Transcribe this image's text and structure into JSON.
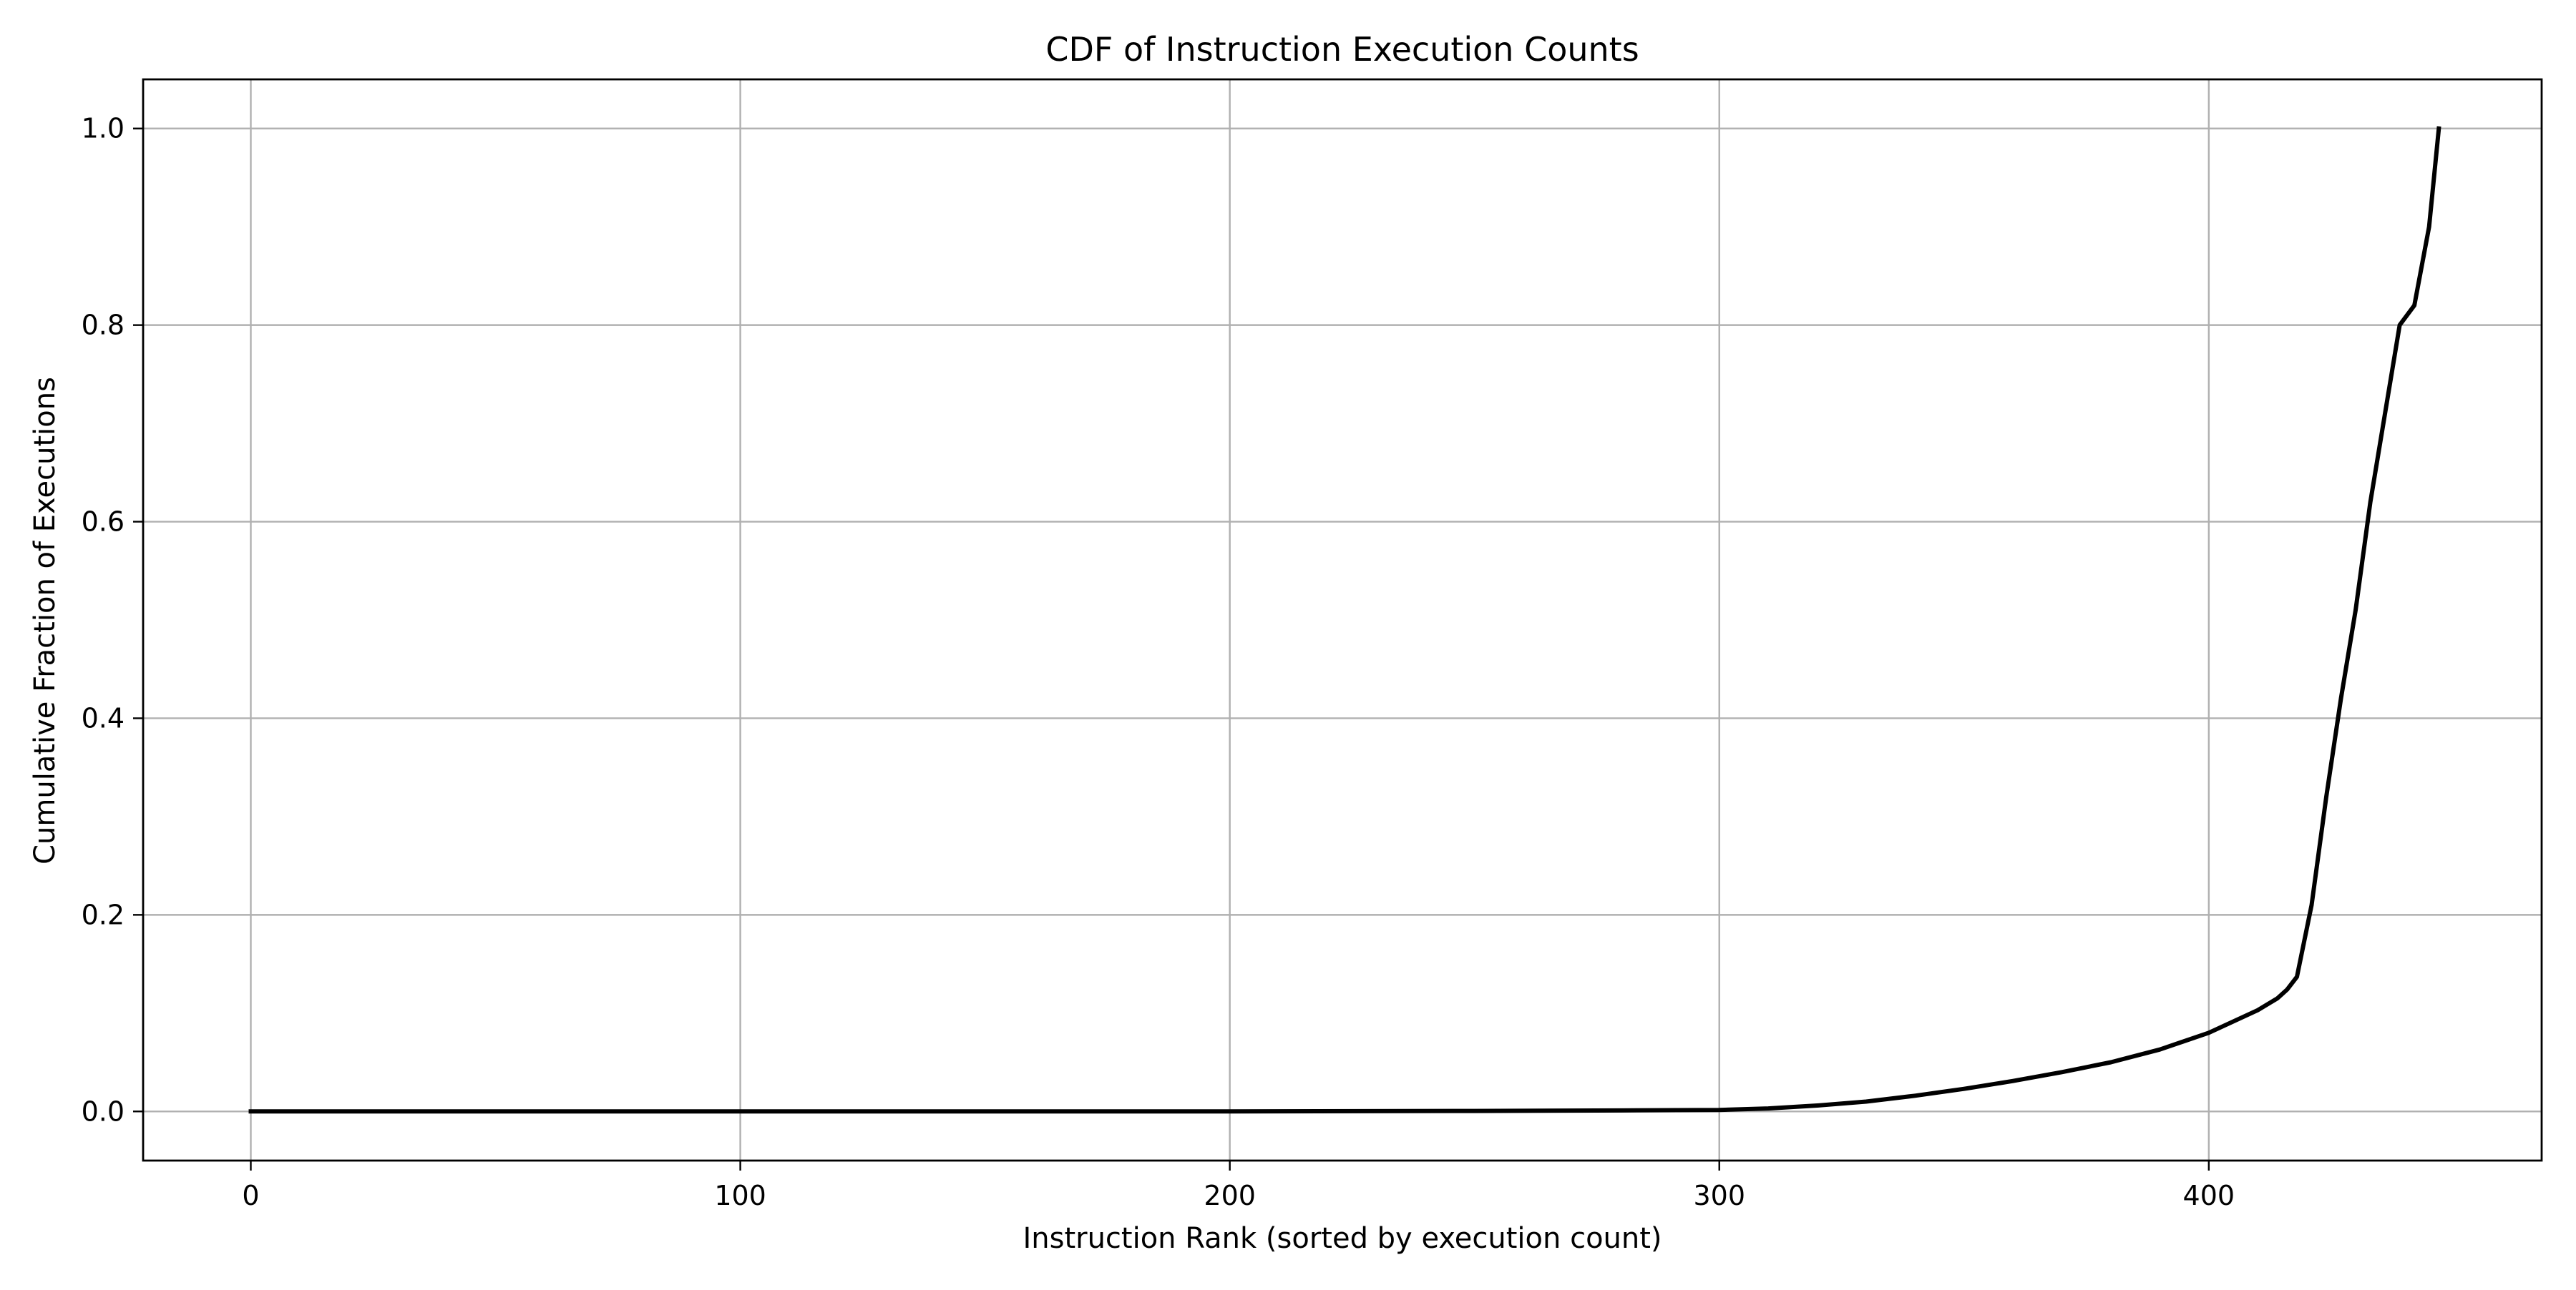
{
  "chart_data": {
    "type": "line",
    "title": "CDF of Instruction Execution Counts",
    "xlabel": "Instruction Rank (sorted by execution count)",
    "ylabel": "Cumulative Fraction of Executions",
    "xlim": [
      -22,
      468
    ],
    "ylim": [
      -0.05,
      1.05
    ],
    "xticks": [
      0,
      100,
      200,
      300,
      400
    ],
    "xtick_labels": [
      "0",
      "100",
      "200",
      "300",
      "400"
    ],
    "yticks": [
      0.0,
      0.2,
      0.4,
      0.6,
      0.8,
      1.0
    ],
    "ytick_labels": [
      "0.0",
      "0.2",
      "0.4",
      "0.6",
      "0.8",
      "1.0"
    ],
    "grid": true,
    "colors": {
      "line": "#000000",
      "grid": "#b0b0b0",
      "frame": "#000000"
    },
    "series": [
      {
        "x": [
          0,
          50,
          100,
          150,
          200,
          250,
          280,
          300,
          310,
          320,
          330,
          340,
          350,
          360,
          370,
          380,
          390,
          400,
          410,
          414,
          416,
          418,
          421,
          424,
          427,
          430,
          433,
          436,
          439,
          442,
          445,
          447
        ],
        "y": [
          0.0,
          0.0,
          0.0,
          0.0,
          0.0,
          0.0005,
          0.001,
          0.0015,
          0.003,
          0.006,
          0.01,
          0.016,
          0.023,
          0.031,
          0.04,
          0.05,
          0.063,
          0.08,
          0.103,
          0.115,
          0.124,
          0.137,
          0.21,
          0.32,
          0.42,
          0.51,
          0.62,
          0.71,
          0.8,
          0.82,
          0.9,
          1.0
        ]
      }
    ]
  }
}
